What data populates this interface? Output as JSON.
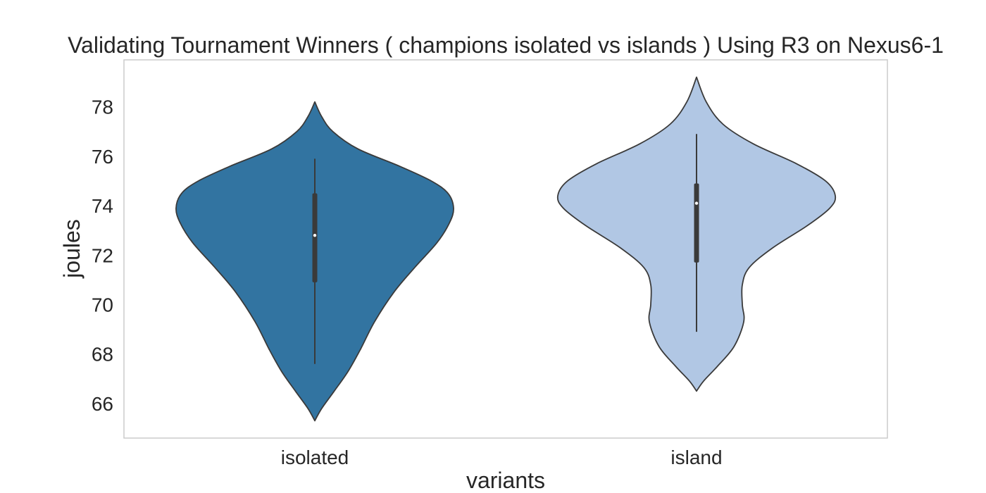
{
  "chart_data": {
    "type": "violin",
    "title": "Validating Tournament Winners ( champions isolated vs islands ) Using R3 on Nexus6-1",
    "xlabel": "variants",
    "ylabel": "joules",
    "categories": [
      "isolated",
      "island"
    ],
    "y_ticks": [
      66,
      68,
      70,
      72,
      74,
      76,
      78
    ],
    "ylim": [
      64.6,
      79.9
    ],
    "grid": false,
    "colors": {
      "isolated": "#3274a1",
      "island": "#b1c7e4",
      "outline": "#3a3a3a",
      "frame": "#cccccc"
    },
    "violins": [
      {
        "category": "isolated",
        "whisker_low": 67.6,
        "q1": 70.9,
        "median": 72.8,
        "q3": 74.5,
        "whisker_high": 75.9,
        "density_min": 65.3,
        "density_max": 78.2,
        "profile": [
          [
            65.3,
            0.0
          ],
          [
            65.8,
            0.05
          ],
          [
            66.5,
            0.14
          ],
          [
            67.3,
            0.24
          ],
          [
            68.2,
            0.33
          ],
          [
            69.3,
            0.43
          ],
          [
            70.5,
            0.57
          ],
          [
            71.5,
            0.72
          ],
          [
            72.5,
            0.88
          ],
          [
            73.3,
            0.97
          ],
          [
            73.9,
            1.0
          ],
          [
            74.5,
            0.96
          ],
          [
            75.0,
            0.84
          ],
          [
            75.6,
            0.61
          ],
          [
            76.3,
            0.31
          ],
          [
            77.0,
            0.13
          ],
          [
            77.6,
            0.05
          ],
          [
            78.2,
            0.0
          ]
        ]
      },
      {
        "category": "island",
        "whisker_low": 68.9,
        "q1": 71.7,
        "median": 74.1,
        "q3": 74.9,
        "whisker_high": 76.9,
        "density_min": 66.5,
        "density_max": 79.2,
        "profile": [
          [
            66.5,
            0.0
          ],
          [
            66.9,
            0.05
          ],
          [
            67.5,
            0.15
          ],
          [
            68.3,
            0.27
          ],
          [
            69.3,
            0.34
          ],
          [
            70.0,
            0.33
          ],
          [
            70.8,
            0.33
          ],
          [
            71.5,
            0.38
          ],
          [
            72.3,
            0.55
          ],
          [
            73.2,
            0.8
          ],
          [
            73.9,
            0.96
          ],
          [
            74.4,
            1.0
          ],
          [
            75.0,
            0.93
          ],
          [
            75.7,
            0.72
          ],
          [
            76.5,
            0.41
          ],
          [
            77.3,
            0.19
          ],
          [
            78.2,
            0.07
          ],
          [
            79.2,
            0.0
          ]
        ]
      }
    ]
  }
}
